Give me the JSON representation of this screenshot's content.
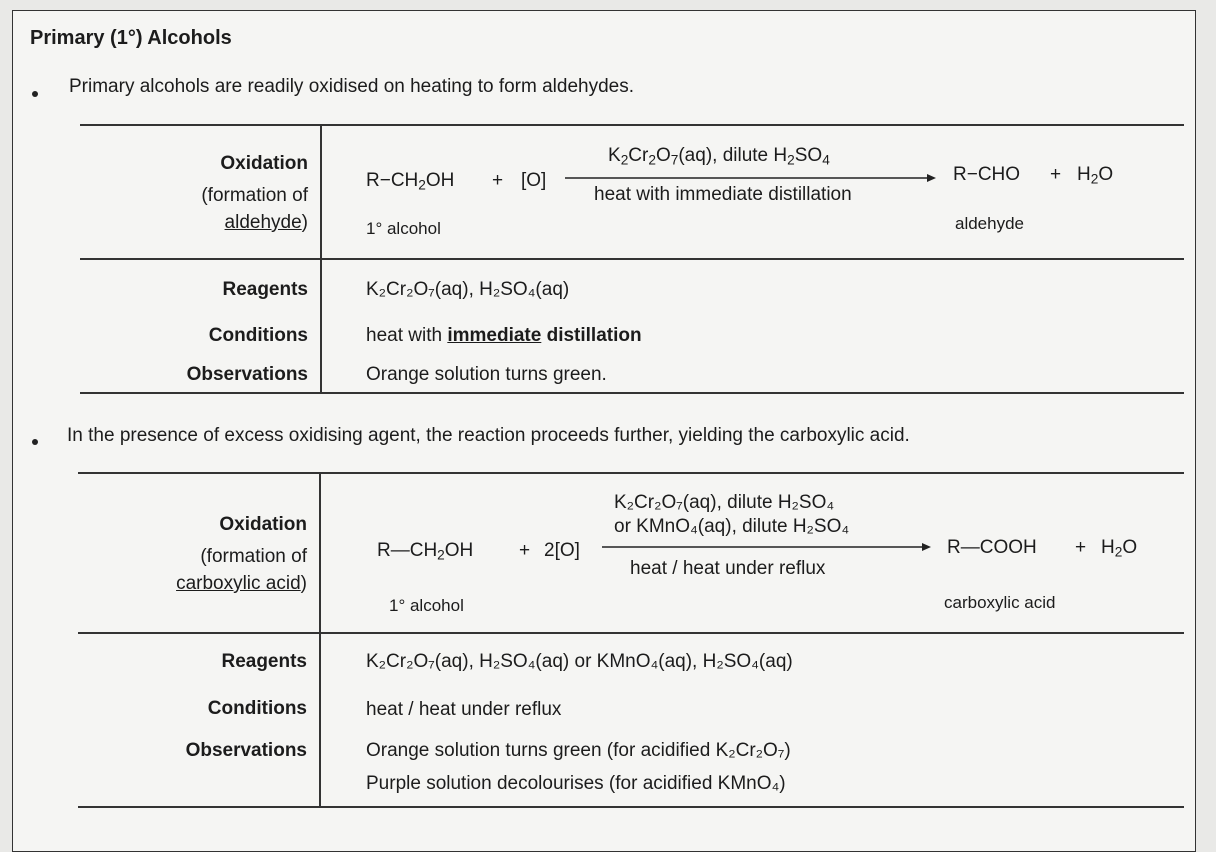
{
  "heading": "Primary (1°) Alcohols",
  "bullet1": "Primary alcohols are readily oxidised on heating to form aldehydes.",
  "bullet2": "In the presence of excess oxidising agent, the reaction proceeds further, yielding the carboxylic acid.",
  "table1": {
    "label_oxidation": "Oxidation",
    "label_formation_prefix": "(formation of",
    "label_formation_product": "aldehyde",
    "label_formation_suffix": ")",
    "reactant_prefix": "R−CH",
    "reactant_sub": "2",
    "reactant_suffix": "OH",
    "plus1": "+",
    "oxidant": "[O]",
    "reagent_above_1": "K",
    "reagent_above_2": "2",
    "reagent_above_3": "Cr",
    "reagent_above_4": "2",
    "reagent_above_5": "O",
    "reagent_above_6": "7",
    "reagent_above_7": "(aq), dilute H",
    "reagent_above_8": "2",
    "reagent_above_9": "SO",
    "reagent_above_10": "4",
    "condition_below": "heat with immediate distillation",
    "product_main": "R−CHO",
    "plus2": "+",
    "water_h": "H",
    "water_sub": "2",
    "water_o": "O",
    "reactant_caption": "1° alcohol",
    "product_caption": "aldehyde",
    "label_reagents": "Reagents",
    "value_reagents": "K₂Cr₂O₇(aq), H₂SO₄(aq)",
    "label_conditions": "Conditions",
    "value_conditions_prefix": "heat with ",
    "value_conditions_emph": "immediate",
    "value_conditions_suffix": " distillation",
    "label_observations": "Observations",
    "value_observations": "Orange solution turns green."
  },
  "table2": {
    "label_oxidation": "Oxidation",
    "label_formation_prefix": "(formation of",
    "label_formation_product": "carboxylic acid",
    "label_formation_suffix": ")",
    "reactant_prefix": "R—CH",
    "reactant_sub": "2",
    "reactant_suffix": "OH",
    "plus1": "+",
    "oxidant": "2[O]",
    "reagent_line1": "K₂Cr₂O₇(aq), dilute H₂SO₄",
    "reagent_line2": "or KMnO₄(aq), dilute H₂SO₄",
    "condition_below": "heat / heat under reflux",
    "product_main": "R—COOH",
    "plus2": "+",
    "water_h": "H",
    "water_sub": "2",
    "water_o": "O",
    "reactant_caption": "1° alcohol",
    "product_caption": "carboxylic acid",
    "label_reagents": "Reagents",
    "value_reagents": "K₂Cr₂O₇(aq), H₂SO₄(aq) or KMnO₄(aq), H₂SO₄(aq)",
    "label_conditions": "Conditions",
    "value_conditions": "heat / heat under reflux",
    "label_observations": "Observations",
    "value_observations_1": "Orange solution turns green (for acidified K₂Cr₂O₇)",
    "value_observations_2": "Purple solution decolourises (for acidified KMnO₄)"
  }
}
